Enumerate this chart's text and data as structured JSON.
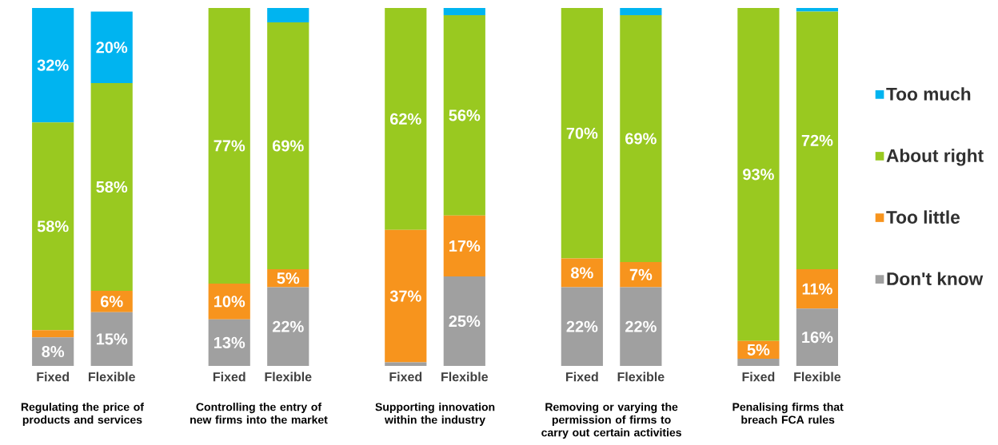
{
  "chart_data": {
    "type": "bar",
    "stacked": true,
    "legend": "right",
    "categories": [
      "Fixed",
      "Flexible",
      "Fixed",
      "Flexible",
      "Fixed",
      "Flexible",
      "Fixed",
      "Flexible",
      "Fixed",
      "Flexible"
    ],
    "series": [
      {
        "name": "Don't know",
        "color": "#a0a0a0",
        "values": [
          8,
          15,
          13,
          22,
          1,
          25,
          22,
          22,
          2,
          16
        ],
        "value_labels": [
          "8%",
          "15%",
          "13%",
          "22%",
          null,
          "25%",
          "22%",
          "22%",
          null,
          "16%"
        ]
      },
      {
        "name": "Too little",
        "color": "#f7941d",
        "values": [
          2,
          6,
          10,
          5,
          37,
          17,
          8,
          7,
          5,
          11
        ],
        "value_labels": [
          null,
          "6%",
          "10%",
          "5%",
          "37%",
          "17%",
          "8%",
          "7%",
          "5%",
          "11%"
        ]
      },
      {
        "name": "About right",
        "color": "#99c920",
        "values": [
          58,
          58,
          77,
          69,
          62,
          56,
          70,
          69,
          93,
          72
        ],
        "value_labels": [
          "58%",
          "58%",
          "77%",
          "69%",
          "62%",
          "56%",
          "70%",
          "69%",
          "93%",
          "72%"
        ]
      },
      {
        "name": "Too much",
        "color": "#00b4f0",
        "values": [
          32,
          20,
          null,
          4,
          null,
          2,
          null,
          2,
          null,
          1
        ],
        "value_labels": [
          "32%",
          "20%",
          null,
          null,
          null,
          null,
          null,
          null,
          null,
          null
        ]
      }
    ],
    "annotations": [
      "Regulating the price of products  and services",
      "Controlling the entry of new firms into the market",
      "Supporting innovation within the industry",
      "Removing or varying the permission of firms to carry out certain activities",
      "Penalising firms that breach FCA rules"
    ]
  }
}
